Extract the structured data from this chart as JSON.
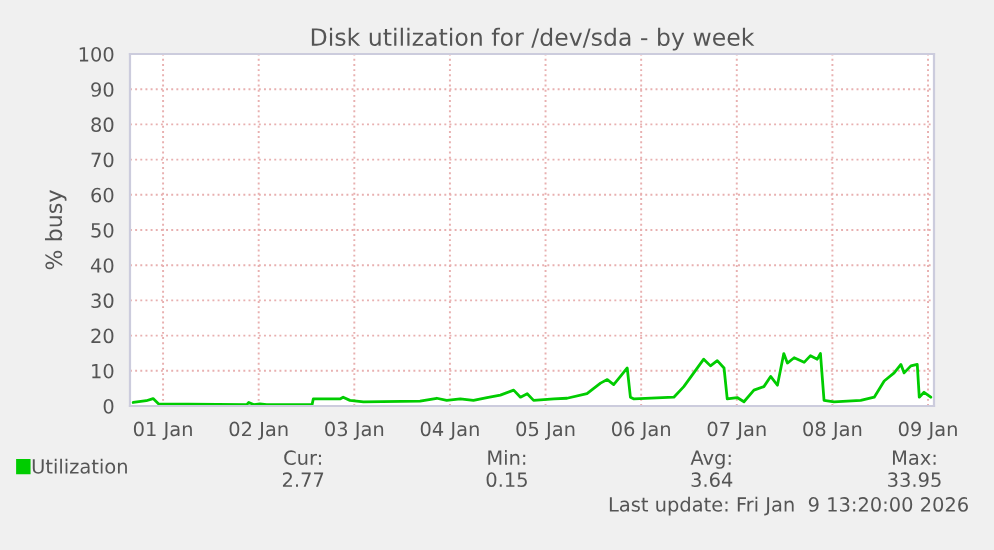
{
  "chart_data": {
    "type": "line",
    "title": "Disk utilization for /dev/sda - by week",
    "ylabel": "% busy",
    "xlim": [
      "2026-01-01T03:42",
      "2026-01-09T13:30"
    ],
    "xticks": [
      {
        "value": "2026-01-01T12:00",
        "label": "01 Jan"
      },
      {
        "value": "2026-01-02T12:00",
        "label": "02 Jan"
      },
      {
        "value": "2026-01-03T12:00",
        "label": "03 Jan"
      },
      {
        "value": "2026-01-04T12:00",
        "label": "04 Jan"
      },
      {
        "value": "2026-01-05T12:00",
        "label": "05 Jan"
      },
      {
        "value": "2026-01-06T12:00",
        "label": "06 Jan"
      },
      {
        "value": "2026-01-07T12:00",
        "label": "07 Jan"
      },
      {
        "value": "2026-01-08T12:00",
        "label": "08 Jan"
      },
      {
        "value": "2026-01-09T12:00",
        "label": "09 Jan"
      }
    ],
    "ylim": [
      0,
      100
    ],
    "yticks": [
      0,
      10,
      20,
      30,
      40,
      50,
      60,
      70,
      80,
      90,
      100
    ],
    "grid": true,
    "legend": "bottom left",
    "marker": "none",
    "line_style": "solid",
    "series": [
      {
        "name": "Utilization",
        "color": "#00cc00",
        "x": [
          "2026-01-01T04:30",
          "2026-01-01T07:48",
          "2026-01-01T09:30",
          "2026-01-01T10:54",
          "2026-01-02T09:00",
          "2026-01-02T09:30",
          "2026-01-02T10:42",
          "2026-01-02T12:18",
          "2026-01-02T14:00",
          "2026-01-03T01:24",
          "2026-01-03T01:42",
          "2026-01-03T08:24",
          "2026-01-03T09:12",
          "2026-01-03T10:54",
          "2026-01-03T14:18",
          "2026-01-04T04:30",
          "2026-01-04T08:42",
          "2026-01-04T11:12",
          "2026-01-04T14:36",
          "2026-01-04T17:54",
          "2026-01-04T21:18",
          "2026-01-05T00:39",
          "2026-01-05T04:00",
          "2026-01-05T05:42",
          "2026-01-05T07:24",
          "2026-01-05T09:00",
          "2026-01-05T14:06",
          "2026-01-05T17:24",
          "2026-01-05T22:24",
          "2026-01-06T01:48",
          "2026-01-06T03:30",
          "2026-01-06T05:06",
          "2026-01-06T06:48",
          "2026-01-06T08:30",
          "2026-01-06T09:18",
          "2026-01-06T10:12",
          "2026-01-06T20:12",
          "2026-01-06T22:42",
          "2026-01-07T01:12",
          "2026-01-07T03:42",
          "2026-01-07T05:24",
          "2026-01-07T07:06",
          "2026-01-07T08:48",
          "2026-01-07T09:36",
          "2026-01-07T12:06",
          "2026-01-07T13:48",
          "2026-01-07T16:18",
          "2026-01-07T18:48",
          "2026-01-07T20:30",
          "2026-01-07T22:12",
          "2026-01-07T23:48",
          "2026-01-08T00:42",
          "2026-01-08T02:24",
          "2026-01-08T04:54",
          "2026-01-08T06:30",
          "2026-01-08T08:12",
          "2026-01-08T09:00",
          "2026-01-08T09:54",
          "2026-01-08T12:24",
          "2026-01-08T19:06",
          "2026-01-08T22:30",
          "2026-01-09T01:00",
          "2026-01-09T03:30",
          "2026-01-09T05:12",
          "2026-01-09T06:00",
          "2026-01-09T07:42",
          "2026-01-09T09:18",
          "2026-01-09T09:48",
          "2026-01-09T11:00",
          "2026-01-09T12:42"
        ],
        "values": [
          1.0,
          1.5,
          2.1,
          0.6,
          0.4,
          1.0,
          0.4,
          0.6,
          0.4,
          0.4,
          2.0,
          2.0,
          2.5,
          1.6,
          1.2,
          1.4,
          2.2,
          1.6,
          2.0,
          1.6,
          2.4,
          3.1,
          4.5,
          2.5,
          3.5,
          1.6,
          2.0,
          2.2,
          3.5,
          6.5,
          7.5,
          6.1,
          8.4,
          10.8,
          2.5,
          2.0,
          2.5,
          5.5,
          9.4,
          13.3,
          11.4,
          12.9,
          10.8,
          2.0,
          2.4,
          1.2,
          4.5,
          5.5,
          8.4,
          5.9,
          14.9,
          12.2,
          13.7,
          12.4,
          14.3,
          13.3,
          14.9,
          1.6,
          1.2,
          1.6,
          2.5,
          7.1,
          9.4,
          11.8,
          9.4,
          11.4,
          11.8,
          2.5,
          3.9,
          2.5
        ]
      }
    ],
    "annotations": [
      "Cur:",
      "Min:",
      "Avg:",
      "Max:",
      "2.77",
      "0.15",
      "3.64",
      "33.95",
      "Last update: Fri Jan  9 13:20:00 2026"
    ]
  }
}
